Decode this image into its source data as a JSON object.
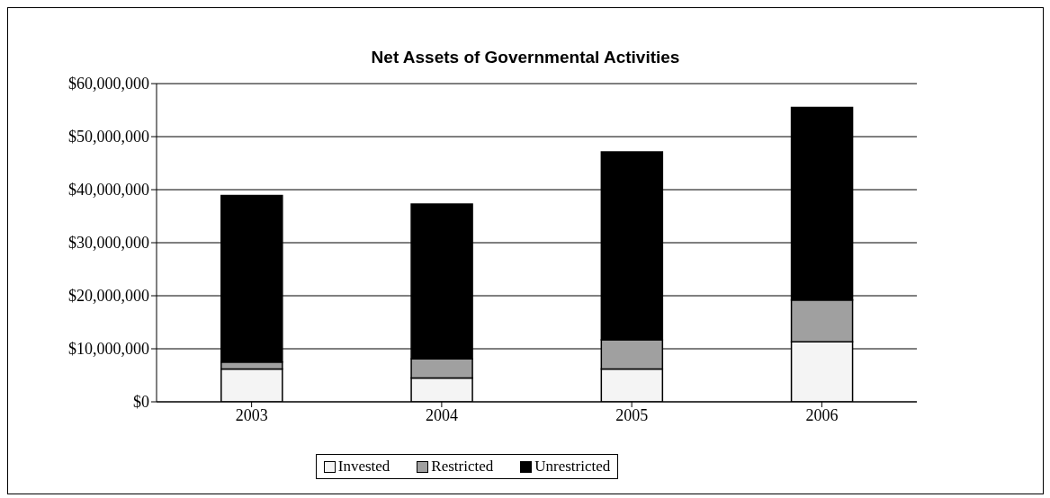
{
  "chart_data": {
    "type": "bar",
    "title": "Net Assets of Governmental Activities",
    "categories": [
      "2003",
      "2004",
      "2005",
      "2006"
    ],
    "stacked": true,
    "series": [
      {
        "name": "Invested",
        "color": "#f4f4f4",
        "values": [
          6200000,
          4500000,
          6200000,
          11300000
        ]
      },
      {
        "name": "Restricted",
        "color": "#a0a0a0",
        "values": [
          1300000,
          3600000,
          5500000,
          7900000
        ]
      },
      {
        "name": "Unrestricted",
        "color": "#000000",
        "values": [
          31400000,
          29200000,
          35400000,
          36300000
        ]
      }
    ],
    "ylim": [
      0,
      60000000
    ],
    "yticks": [
      {
        "value": 0,
        "label": "$0"
      },
      {
        "value": 10000000,
        "label": "$10,000,000"
      },
      {
        "value": 20000000,
        "label": "$20,000,000"
      },
      {
        "value": 30000000,
        "label": "$30,000,000"
      },
      {
        "value": 40000000,
        "label": "$40,000,000"
      },
      {
        "value": 50000000,
        "label": "$50,000,000"
      },
      {
        "value": 60000000,
        "label": "$60,000,000"
      }
    ],
    "grid": "y",
    "legend": "bottom"
  }
}
